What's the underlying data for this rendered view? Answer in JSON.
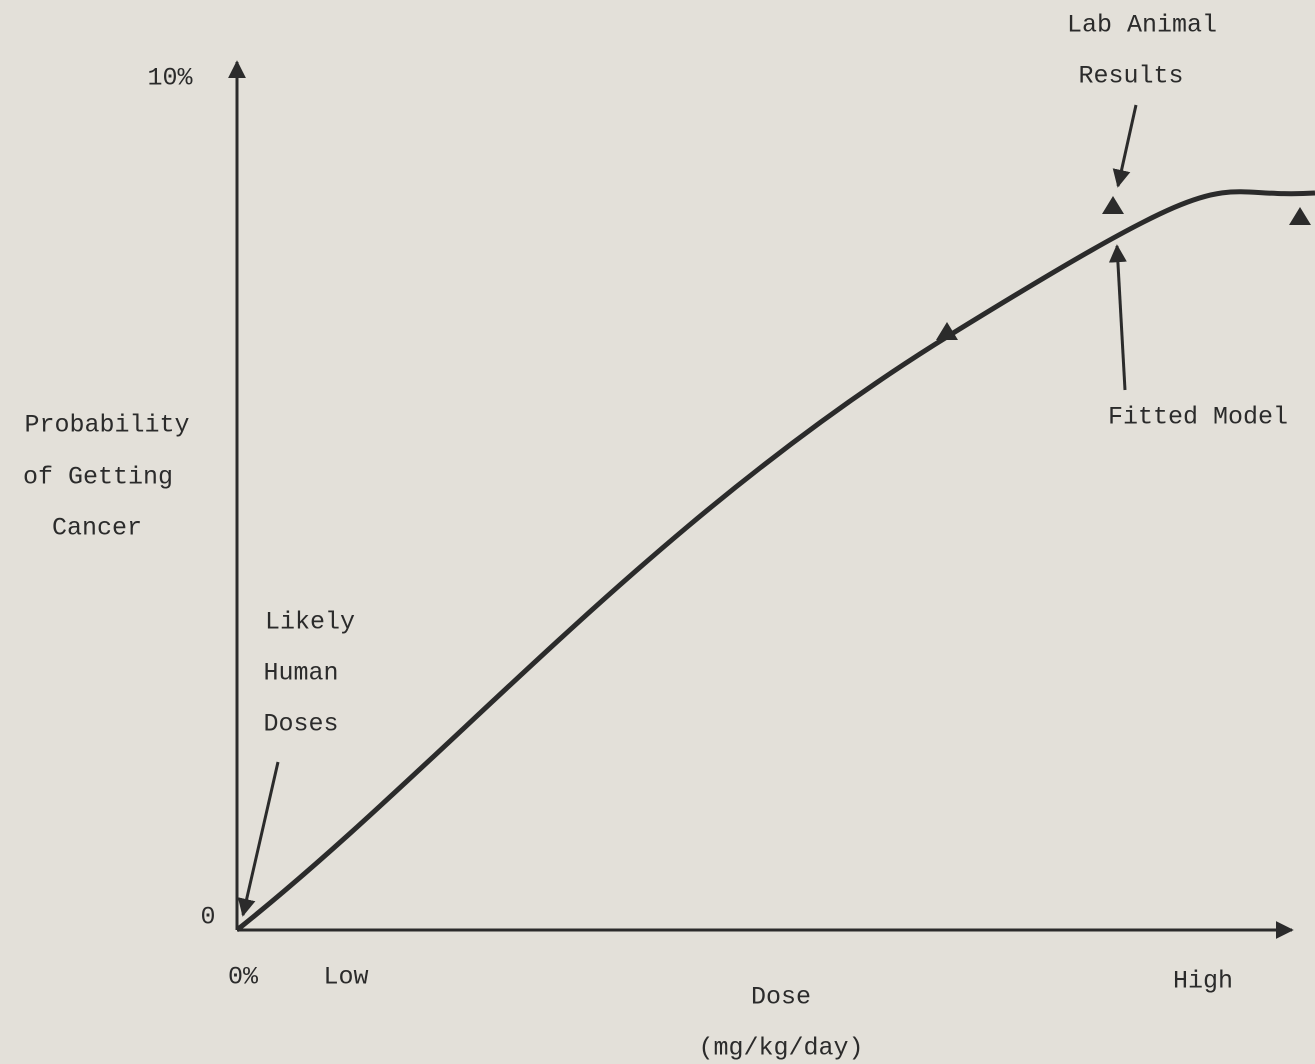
{
  "y_axis": {
    "top_label": "10%",
    "bottom_label": "0",
    "title": [
      "Probability",
      "of Getting",
      "Cancer"
    ]
  },
  "x_axis": {
    "origin_label": "0%",
    "low_label": "Low",
    "high_label": "High",
    "title": "Dose",
    "unit": "(mg/kg/day)"
  },
  "annotations": {
    "human_doses": [
      "Likely",
      "Human",
      "Doses"
    ],
    "lab_results": [
      "Lab Animal",
      "Results"
    ],
    "fitted_model": "Fitted Model"
  }
}
